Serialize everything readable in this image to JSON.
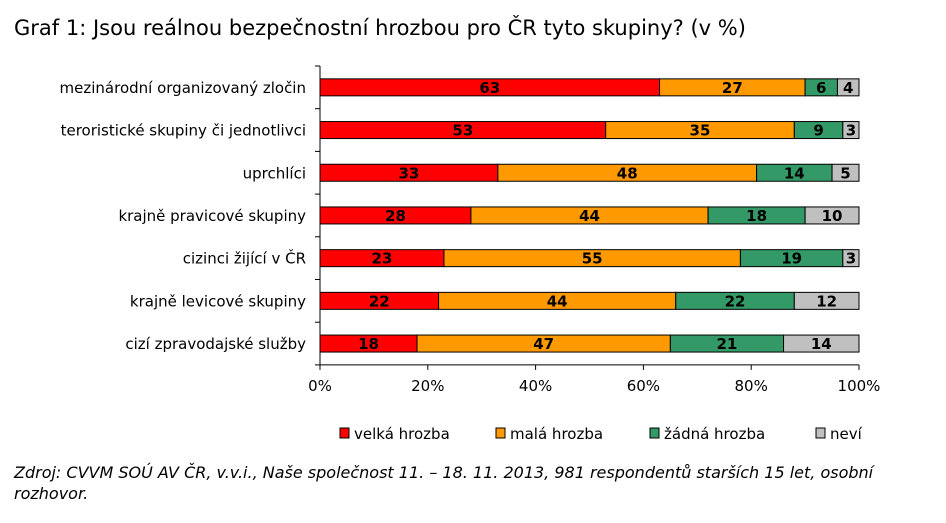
{
  "title": "Graf 1: Jsou reálnou bezpečnostní hrozbou pro ČR tyto skupiny? (v %)",
  "source": "Zdroj: CVVM SOÚ AV ČR, v.v.i., Naše společnost 11. – 18. 11. 2013, 981 respondentů starších 15 let, osobní rozhovor.",
  "chart_data": {
    "type": "bar",
    "orientation": "horizontal",
    "stacked": true,
    "categories": [
      "mezinárodní organizovaný zločin",
      "teroristické skupiny či jednotlivci",
      "uprchlíci",
      "krajně pravicové skupiny",
      "cizinci žijící v ČR",
      "krajně levicové skupiny",
      "cizí zpravodajské služby"
    ],
    "series": [
      {
        "name": "velká hrozba",
        "color": "#ff0000",
        "values": [
          63,
          53,
          33,
          28,
          23,
          22,
          18
        ]
      },
      {
        "name": "malá hrozba",
        "color": "#ff9900",
        "values": [
          27,
          35,
          48,
          44,
          55,
          44,
          47
        ]
      },
      {
        "name": "žádná hrozba",
        "color": "#339966",
        "values": [
          6,
          9,
          14,
          18,
          19,
          22,
          21
        ]
      },
      {
        "name": "neví",
        "color": "#c0c0c0",
        "values": [
          4,
          3,
          5,
          10,
          3,
          12,
          14
        ]
      }
    ],
    "xlim": [
      0,
      100
    ],
    "xticks": [
      "0%",
      "20%",
      "40%",
      "60%",
      "80%",
      "100%"
    ],
    "legend_position": "bottom",
    "grid": false
  }
}
